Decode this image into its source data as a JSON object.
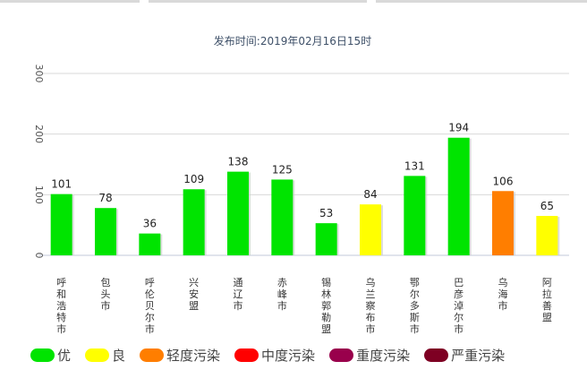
{
  "chart_data": {
    "type": "bar",
    "subtitle": "发布时间:2019年02月16日15时",
    "categories": [
      "呼和浩特市",
      "包头市",
      "呼伦贝尔市",
      "兴安盟",
      "通辽市",
      "赤峰市",
      "锡林郭勒盟",
      "乌兰察布市",
      "鄂尔多斯市",
      "巴彦淖尔市",
      "乌海市",
      "阿拉善盟"
    ],
    "values": [
      101,
      78,
      36,
      109,
      138,
      125,
      53,
      84,
      131,
      194,
      106,
      65
    ],
    "levels": [
      "优",
      "优",
      "优",
      "优",
      "优",
      "优",
      "优",
      "良",
      "优",
      "优",
      "轻度污染",
      "良"
    ],
    "ylim": [
      0,
      300
    ],
    "yticks": [
      0,
      100,
      200,
      300
    ],
    "grid": true,
    "legend_position": "bottom"
  },
  "legend": [
    {
      "label": "优",
      "color": "#00e400"
    },
    {
      "label": "良",
      "color": "#ffff00"
    },
    {
      "label": "轻度污染",
      "color": "#ff7e00"
    },
    {
      "label": "中度污染",
      "color": "#ff0000"
    },
    {
      "label": "重度污染",
      "color": "#99004c"
    },
    {
      "label": "严重污染",
      "color": "#7e0023"
    }
  ],
  "level_colors": {
    "优": "#00e400",
    "良": "#ffff00",
    "轻度污染": "#ff7e00",
    "中度污染": "#ff0000",
    "重度污染": "#99004c",
    "严重污染": "#7e0023"
  }
}
